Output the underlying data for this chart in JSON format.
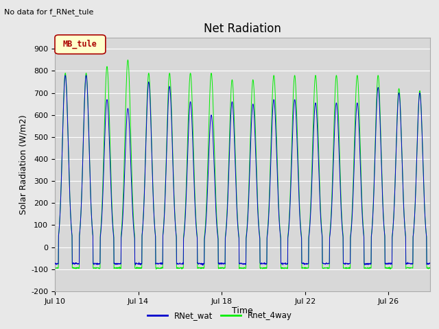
{
  "title": "Net Radiation",
  "top_left_text": "No data for f_RNet_tule",
  "xlabel": "Time",
  "ylabel": "Solar Radiation (W/m2)",
  "ylim": [
    -200,
    950
  ],
  "yticks": [
    -200,
    -100,
    0,
    100,
    200,
    300,
    400,
    500,
    600,
    700,
    800,
    900
  ],
  "xtick_labels": [
    "Jul 10",
    "Jul 14",
    "Jul 18",
    "Jul 22",
    "Jul 26"
  ],
  "background_color": "#e8e8e8",
  "plot_bg_color": "#d8d8d8",
  "line1_color": "#0000cc",
  "line2_color": "#00ee00",
  "line1_label": "RNet_wat",
  "line2_label": "Rnet_4way",
  "legend_box_color": "#ffffcc",
  "legend_box_edge": "#aa0000",
  "legend_box_text": "MB_tule",
  "legend_box_text_color": "#aa0000",
  "num_days": 18,
  "title_fontsize": 12,
  "axis_fontsize": 9,
  "tick_fontsize": 8
}
